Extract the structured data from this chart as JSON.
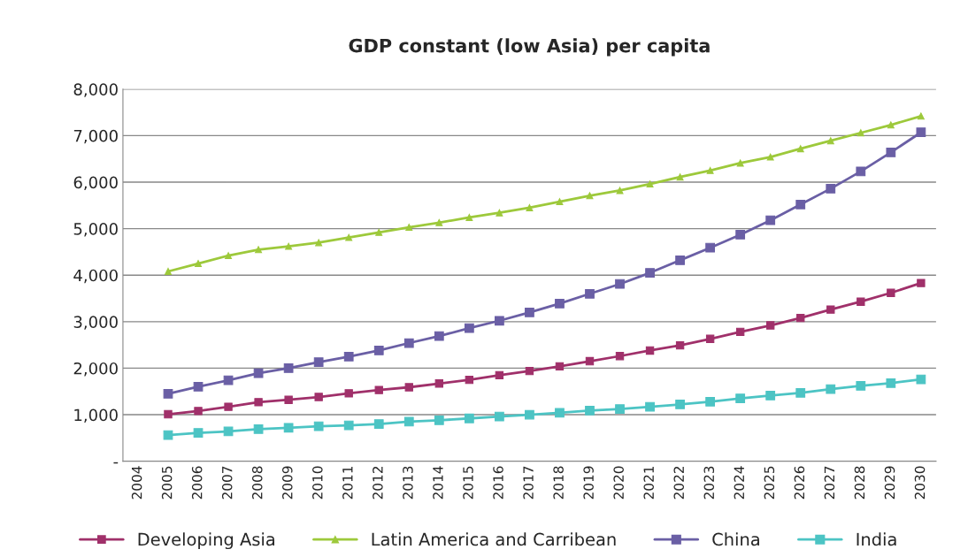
{
  "chart_data": {
    "type": "line",
    "title": "GDP constant (low Asia) per capita",
    "categories": [
      "2004",
      "2005",
      "2006",
      "2007",
      "2008",
      "2009",
      "2010",
      "2011",
      "2012",
      "2013",
      "2014",
      "2015",
      "2016",
      "2017",
      "2018",
      "2019",
      "2020",
      "2021",
      "2022",
      "2023",
      "2024",
      "2025",
      "2026",
      "2027",
      "2028",
      "2029",
      "2030"
    ],
    "series": [
      {
        "name": "Developing Asia",
        "color": "#a0306a",
        "marker": "square",
        "values": [
          null,
          1010,
          1080,
          1170,
          1270,
          1320,
          1380,
          1460,
          1530,
          1590,
          1670,
          1750,
          1850,
          1940,
          2040,
          2150,
          2260,
          2380,
          2490,
          2630,
          2780,
          2920,
          3080,
          3260,
          3430,
          3620,
          3830
        ]
      },
      {
        "name": "Latin America and Carribean",
        "color": "#9dc93b",
        "marker": "triangle",
        "values": [
          null,
          4080,
          4250,
          4420,
          4550,
          4620,
          4700,
          4810,
          4920,
          5030,
          5130,
          5240,
          5340,
          5450,
          5580,
          5710,
          5820,
          5960,
          6110,
          6250,
          6410,
          6540,
          6720,
          6890,
          7060,
          7230,
          7420
        ]
      },
      {
        "name": "China",
        "color": "#6a5fa5",
        "marker": "square",
        "values": [
          null,
          1450,
          1600,
          1740,
          1890,
          2000,
          2130,
          2250,
          2380,
          2540,
          2690,
          2860,
          3020,
          3200,
          3390,
          3600,
          3810,
          4050,
          4320,
          4590,
          4870,
          5180,
          5520,
          5860,
          6230,
          6640,
          7070
        ]
      },
      {
        "name": "India",
        "color": "#4cc4c4",
        "marker": "square",
        "values": [
          null,
          560,
          610,
          640,
          690,
          720,
          750,
          770,
          800,
          850,
          880,
          920,
          960,
          1000,
          1040,
          1090,
          1120,
          1170,
          1220,
          1280,
          1350,
          1410,
          1470,
          1550,
          1620,
          1680,
          1760
        ]
      }
    ],
    "ylim": [
      0,
      8000
    ],
    "yticks": [
      {
        "value": 0,
        "label": "-"
      },
      {
        "value": 1000,
        "label": "1,000"
      },
      {
        "value": 2000,
        "label": "2,000"
      },
      {
        "value": 3000,
        "label": "3,000"
      },
      {
        "value": 4000,
        "label": "4,000"
      },
      {
        "value": 5000,
        "label": "5,000"
      },
      {
        "value": 6000,
        "label": "6,000"
      },
      {
        "value": 7000,
        "label": "7,000"
      },
      {
        "value": 8000,
        "label": "8,000"
      }
    ],
    "grid": "y",
    "legend": "bottom"
  }
}
